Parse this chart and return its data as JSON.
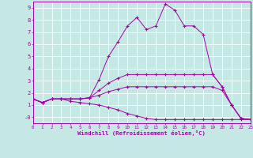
{
  "xlabel": "Windchill (Refroidissement éolien,°C)",
  "background_color": "#c6e8e4",
  "line_color": "#aa00aa",
  "grid_color": "#b0d8d4",
  "xlim": [
    0,
    23
  ],
  "ylim": [
    -0.5,
    9.5
  ],
  "ytick_vals": [
    0,
    1,
    2,
    3,
    4,
    5,
    6,
    7,
    8,
    9
  ],
  "ytick_labels": [
    "-0",
    "1",
    "2",
    "3",
    "4",
    "5",
    "6",
    "7",
    "8",
    "9"
  ],
  "xtick_vals": [
    0,
    1,
    2,
    3,
    4,
    5,
    6,
    7,
    8,
    9,
    10,
    11,
    12,
    13,
    14,
    15,
    16,
    17,
    18,
    19,
    20,
    21,
    22,
    23
  ],
  "curves": [
    {
      "x": [
        0,
        1,
        2,
        3,
        4,
        5,
        6,
        7,
        8,
        9,
        10,
        11,
        12,
        13,
        14,
        15,
        16,
        17,
        18,
        19,
        20,
        21,
        22,
        23
      ],
      "y": [
        1.5,
        1.2,
        1.5,
        1.5,
        1.5,
        1.5,
        1.6,
        3.1,
        5.0,
        6.2,
        7.5,
        8.2,
        7.2,
        7.5,
        9.3,
        8.8,
        7.5,
        7.5,
        6.8,
        3.5,
        2.5,
        1.0,
        -0.1,
        -0.2
      ]
    },
    {
      "x": [
        0,
        1,
        2,
        3,
        4,
        5,
        6,
        7,
        8,
        9,
        10,
        11,
        12,
        13,
        14,
        15,
        16,
        17,
        18,
        19,
        20,
        21,
        22,
        23
      ],
      "y": [
        1.5,
        1.2,
        1.5,
        1.5,
        1.5,
        1.5,
        1.6,
        2.2,
        2.8,
        3.2,
        3.5,
        3.5,
        3.5,
        3.5,
        3.5,
        3.5,
        3.5,
        3.5,
        3.5,
        3.5,
        2.5,
        1.0,
        -0.1,
        -0.2
      ]
    },
    {
      "x": [
        0,
        1,
        2,
        3,
        4,
        5,
        6,
        7,
        8,
        9,
        10,
        11,
        12,
        13,
        14,
        15,
        16,
        17,
        18,
        19,
        20,
        21,
        22,
        23
      ],
      "y": [
        1.5,
        1.2,
        1.5,
        1.5,
        1.5,
        1.5,
        1.6,
        1.8,
        2.1,
        2.3,
        2.5,
        2.5,
        2.5,
        2.5,
        2.5,
        2.5,
        2.5,
        2.5,
        2.5,
        2.5,
        2.2,
        1.0,
        -0.1,
        -0.2
      ]
    },
    {
      "x": [
        0,
        1,
        2,
        3,
        4,
        5,
        6,
        7,
        8,
        9,
        10,
        11,
        12,
        13,
        14,
        15,
        16,
        17,
        18,
        19,
        20,
        21,
        22,
        23
      ],
      "y": [
        1.5,
        1.2,
        1.5,
        1.5,
        1.3,
        1.2,
        1.1,
        1.0,
        0.8,
        0.6,
        0.3,
        0.1,
        -0.1,
        -0.2,
        -0.2,
        -0.2,
        -0.2,
        -0.2,
        -0.2,
        -0.2,
        -0.2,
        -0.2,
        -0.2,
        -0.2
      ]
    }
  ]
}
